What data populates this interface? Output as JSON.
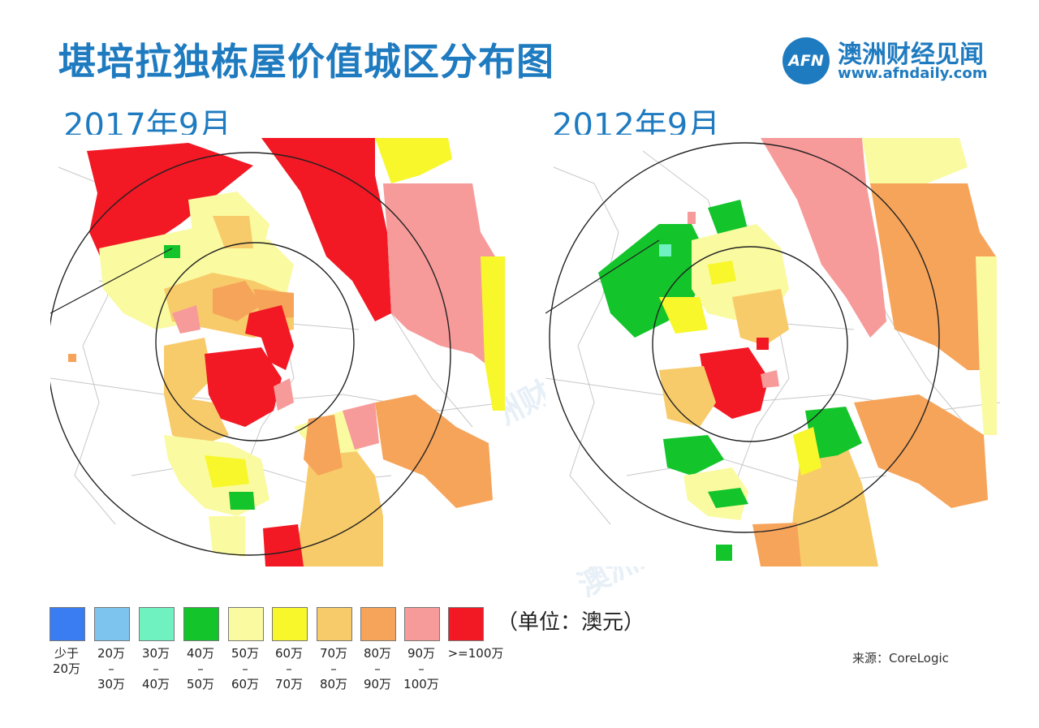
{
  "title": "堪培拉独栋屋价值城区分布图",
  "brand": {
    "logo_text": "AFN",
    "name": "澳洲财经见闻",
    "url": "www.afndaily.com",
    "color": "#1f7bc0"
  },
  "maps": [
    {
      "label": "2017年9月"
    },
    {
      "label": "2012年9月"
    }
  ],
  "watermark": "澳洲财经见闻",
  "legend": {
    "items": [
      {
        "label": "少于\n20万",
        "color": "#3a7df2"
      },
      {
        "label": "20万\n–\n30万",
        "color": "#7dc4ef"
      },
      {
        "label": "30万\n–\n40万",
        "color": "#6ff2bf"
      },
      {
        "label": "40万\n–\n50万",
        "color": "#13c42b"
      },
      {
        "label": "50万\n–\n60万",
        "color": "#fafaa0"
      },
      {
        "label": "60万\n–\n70万",
        "color": "#f7f72c"
      },
      {
        "label": "70万\n–\n80万",
        "color": "#f8cb6a"
      },
      {
        "label": "80万\n–\n90万",
        "color": "#f6a45a"
      },
      {
        "label": "90万\n–\n100万",
        "color": "#f79a9a"
      },
      {
        "label": ">=100万",
        "color": "#f21824"
      }
    ],
    "unit": "（单位：澳元）"
  },
  "source": "来源：CoreLogic"
}
